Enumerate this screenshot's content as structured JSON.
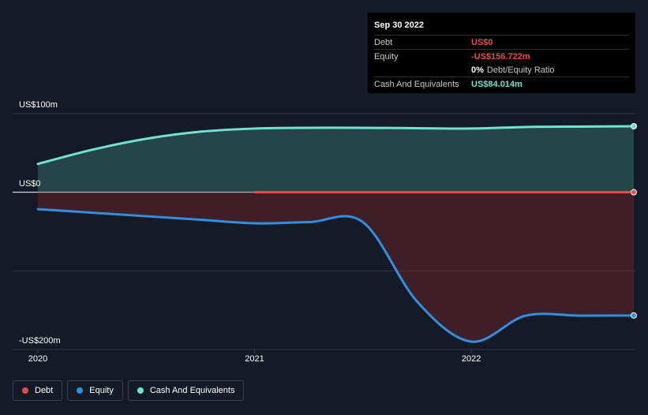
{
  "chart_data": {
    "type": "area",
    "title": "",
    "x_ticks": [
      "2020",
      "2021",
      "2022"
    ],
    "y_ticks": [
      {
        "label": "US$100m",
        "value": 100
      },
      {
        "label": "US$0",
        "value": 0
      },
      {
        "label": "-US$200m",
        "value": -200
      }
    ],
    "ylim": [
      -200,
      100
    ],
    "xlim": [
      2020.0,
      2022.75
    ],
    "grid": true,
    "legend_position": "bottom-left",
    "series": [
      {
        "name": "Debt",
        "key": "debt",
        "color": "#e84b4b",
        "x": [
          2021.0,
          2021.25,
          2021.5,
          2021.75,
          2022.0,
          2022.25,
          2022.5,
          2022.75
        ],
        "values": [
          0,
          0,
          0,
          0,
          0,
          0,
          0,
          0
        ]
      },
      {
        "name": "Equity",
        "key": "equity",
        "color": "#2f8fe0",
        "x": [
          2020.0,
          2020.25,
          2020.5,
          2020.75,
          2021.0,
          2021.25,
          2021.5,
          2021.75,
          2022.0,
          2022.25,
          2022.5,
          2022.75
        ],
        "values": [
          -21.5,
          -26,
          -30.5,
          -35,
          -39.5,
          -38,
          -38,
          -139,
          -190,
          -157,
          -157,
          -156.7
        ]
      },
      {
        "name": "Cash And Equivalents",
        "key": "cash",
        "color": "#6fe3cf",
        "x": [
          2020.0,
          2020.25,
          2020.5,
          2020.75,
          2021.0,
          2021.25,
          2021.5,
          2021.75,
          2022.0,
          2022.25,
          2022.5,
          2022.75
        ],
        "values": [
          36,
          54,
          68,
          77,
          81,
          82,
          82,
          81.5,
          81,
          83,
          83.5,
          84
        ]
      }
    ]
  },
  "tooltip": {
    "date": "Sep 30 2022",
    "debt_label": "Debt",
    "debt_value": "US$0",
    "equity_label": "Equity",
    "equity_value": "-US$156.722m",
    "ratio_value": "0%",
    "ratio_label": "Debt/Equity Ratio",
    "cash_label": "Cash And Equivalents",
    "cash_value": "US$84.014m"
  },
  "colors": {
    "debt": "#e84b4b",
    "equity": "#2f8fe0",
    "cash": "#6fe3cf",
    "background": "#151b26"
  }
}
